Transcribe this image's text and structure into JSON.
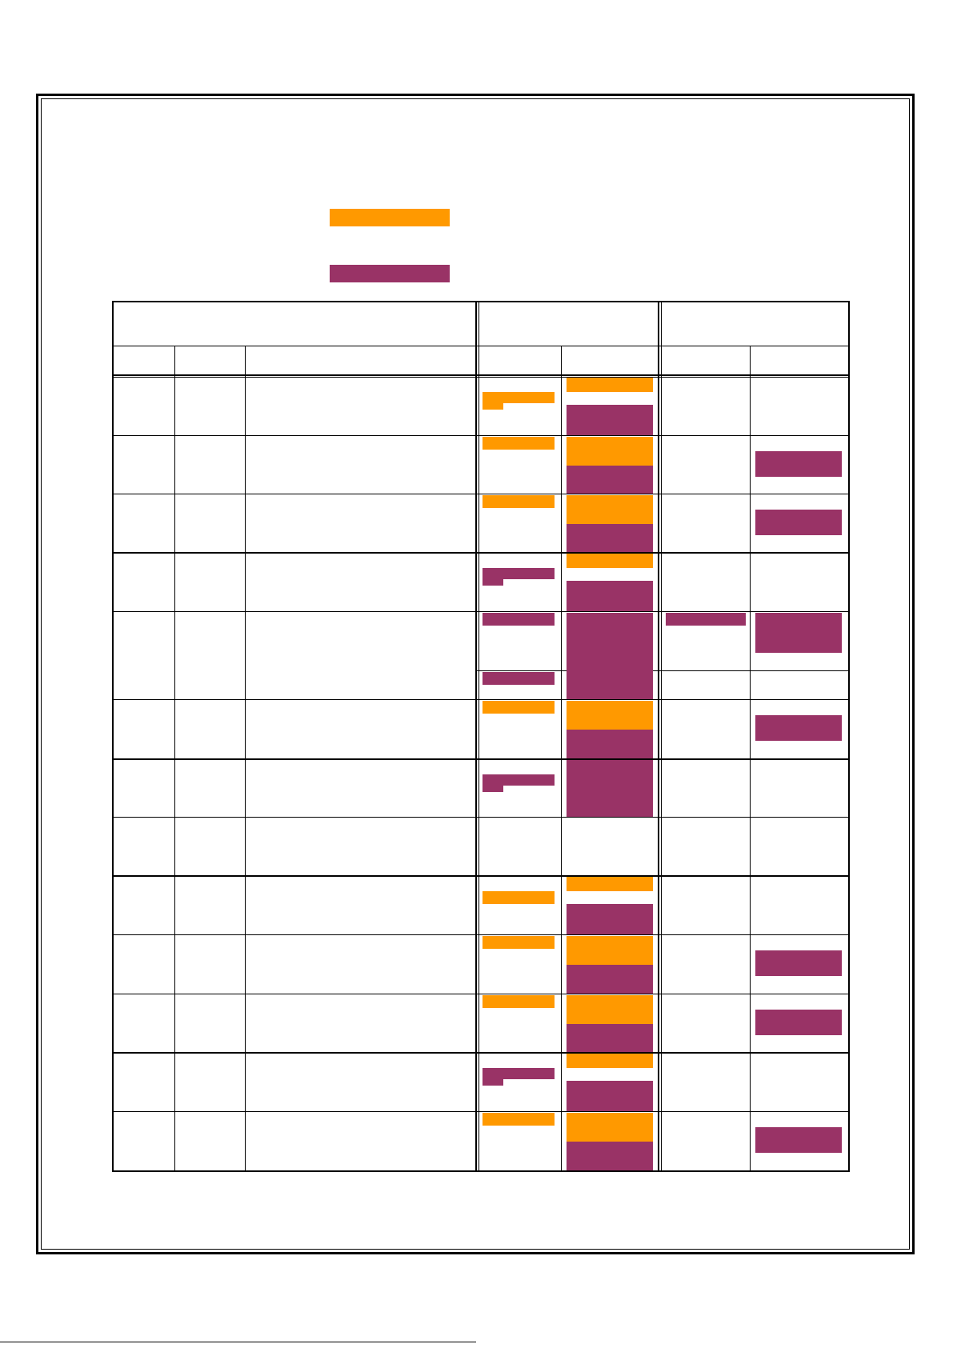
{
  "colors": {
    "orange": "#FF9900",
    "purple": "#993366",
    "border": "#000000"
  },
  "legend": [
    {
      "color": "orange",
      "label": ""
    },
    {
      "color": "purple",
      "label": ""
    }
  ],
  "table": {
    "header": {
      "group_1": "",
      "group_2": "",
      "group_3": "",
      "subheaders": [
        "",
        "",
        "",
        "",
        "",
        "",
        ""
      ]
    },
    "rows": [
      {
        "cells": [
          "",
          "",
          "",
          "",
          "",
          "",
          ""
        ],
        "marks": {
          "col4": [
            "orange-short"
          ],
          "col5": [
            "orange-top",
            "purple-bottom"
          ],
          "col6": [],
          "col7": []
        }
      },
      {
        "cells": [
          "",
          "",
          "",
          "",
          "",
          "",
          ""
        ],
        "marks": {
          "col4": [
            "orange-top"
          ],
          "col5": [
            "orange-upper",
            "purple-lower"
          ],
          "col6": [],
          "col7": [
            "purple"
          ]
        }
      },
      {
        "cells": [
          "",
          "",
          "",
          "",
          "",
          "",
          ""
        ],
        "marks": {
          "col4": [
            "orange-top"
          ],
          "col5": [
            "orange-upper",
            "purple-lower"
          ],
          "col6": [],
          "col7": [
            "purple"
          ]
        }
      },
      {
        "cells": [
          "",
          "",
          "",
          "",
          "",
          "",
          ""
        ],
        "marks": {
          "col4": [
            "purple-short"
          ],
          "col5": [
            "orange-top",
            "purple-bottom"
          ],
          "col6": [],
          "col7": []
        }
      },
      {
        "cells": [
          "",
          "",
          "",
          "",
          "",
          "",
          ""
        ],
        "marks": {
          "col4": [
            "purple-top",
            "purple-bottom"
          ],
          "col5": [
            "purple-full"
          ],
          "col6": [
            "purple-top"
          ],
          "col7": [
            "purple"
          ]
        }
      },
      {
        "cells": [
          "",
          "",
          "",
          "",
          "",
          "",
          ""
        ],
        "marks": {
          "col4": [
            "orange-top"
          ],
          "col5": [
            "orange-upper",
            "purple-lower"
          ],
          "col6": [],
          "col7": [
            "purple"
          ]
        }
      },
      {
        "cells": [
          "",
          "",
          "",
          "",
          "",
          "",
          ""
        ],
        "marks": {
          "col4": [
            "purple-short"
          ],
          "col5": [
            "purple-full"
          ],
          "col6": [],
          "col7": []
        }
      },
      {
        "cells": [
          "",
          "",
          "",
          "",
          "",
          "",
          ""
        ],
        "marks": {
          "col4": [],
          "col5": [],
          "col6": [],
          "col7": []
        }
      },
      {
        "cells": [
          "",
          "",
          "",
          "",
          "",
          "",
          ""
        ],
        "marks": {
          "col4": [
            "orange-mid"
          ],
          "col5": [
            "orange-top",
            "purple-bottom"
          ],
          "col6": [],
          "col7": []
        }
      },
      {
        "cells": [
          "",
          "",
          "",
          "",
          "",
          "",
          ""
        ],
        "marks": {
          "col4": [
            "orange-top"
          ],
          "col5": [
            "orange-upper",
            "purple-lower"
          ],
          "col6": [],
          "col7": [
            "purple"
          ]
        }
      },
      {
        "cells": [
          "",
          "",
          "",
          "",
          "",
          "",
          ""
        ],
        "marks": {
          "col4": [
            "orange-top"
          ],
          "col5": [
            "orange-upper",
            "purple-lower"
          ],
          "col6": [],
          "col7": [
            "purple"
          ]
        }
      },
      {
        "cells": [
          "",
          "",
          "",
          "",
          "",
          "",
          ""
        ],
        "marks": {
          "col4": [
            "purple-short"
          ],
          "col5": [
            "orange-top",
            "purple-bottom"
          ],
          "col6": [],
          "col7": []
        }
      },
      {
        "cells": [
          "",
          "",
          "",
          "",
          "",
          "",
          ""
        ],
        "marks": {
          "col4": [
            "orange-top"
          ],
          "col5": [
            "orange-upper",
            "purple-lower"
          ],
          "col6": [],
          "col7": [
            "purple"
          ]
        }
      }
    ]
  },
  "footer": {
    "mark": ""
  }
}
